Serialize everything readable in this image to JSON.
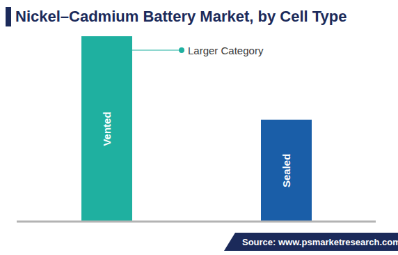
{
  "chart_data": {
    "type": "bar",
    "title": "Nickel–Cadmium Battery Market, by Cell Type",
    "categories": [
      "Vented",
      "Sealed"
    ],
    "values": [
      100,
      55
    ],
    "colors": [
      "#1fb0a0",
      "#1a5ea8"
    ],
    "ylim": [
      0,
      100
    ],
    "tick_labels": false,
    "annotation": "Larger Category",
    "source": "Source: www.psmarketresearch.com"
  }
}
